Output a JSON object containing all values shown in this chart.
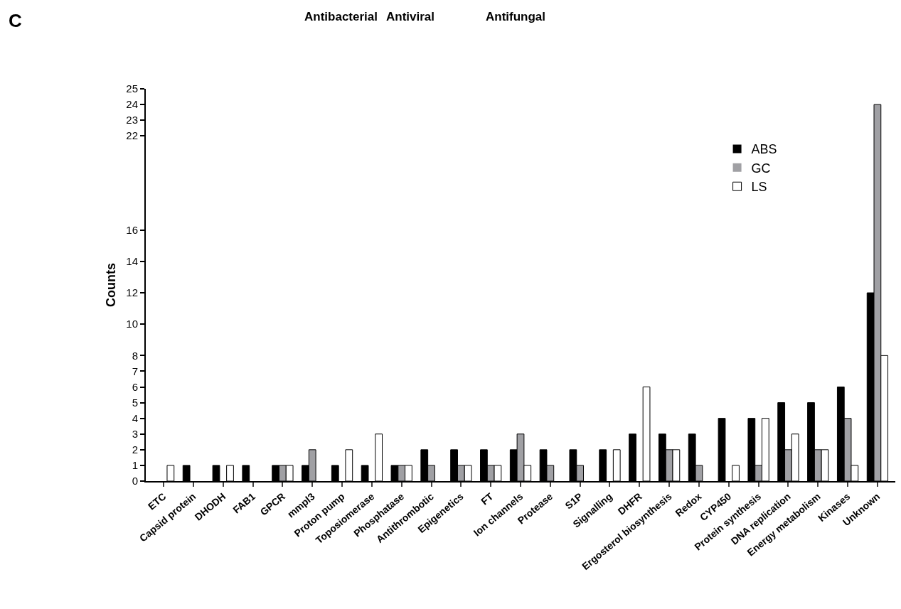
{
  "chart_data": {
    "type": "bar",
    "ylabel": "Counts",
    "categories": [
      "ETC",
      "Capsid protein",
      "DHODH",
      "FAB1",
      "GPCR",
      "mmpl3",
      "Proton pump",
      "Toposiomerase",
      "Phosphatase",
      "Antithrombotic",
      "Epigenetics",
      "FT",
      "Ion channels",
      "Protease",
      "S1P",
      "Signalling",
      "DHFR",
      "Ergosterol biosynthesis",
      "Redox",
      "CYP450",
      "Protein synthesis",
      "DNA replication",
      "Energy metabolism",
      "Kinases",
      "Unknown"
    ],
    "series": [
      {
        "name": "ABS",
        "color": "#000000",
        "values": [
          0,
          1,
          1,
          1,
          1,
          1,
          1,
          1,
          1,
          2,
          2,
          2,
          2,
          2,
          2,
          2,
          3,
          3,
          3,
          4,
          4,
          5,
          5,
          6,
          12
        ]
      },
      {
        "name": "GC",
        "color": "#a0a0a4",
        "values": [
          0,
          0,
          0,
          0,
          1,
          2,
          0,
          0,
          1,
          1,
          1,
          1,
          3,
          1,
          1,
          0,
          0,
          2,
          1,
          0,
          1,
          2,
          2,
          4,
          24
        ]
      },
      {
        "name": "LS",
        "color": "#ffffff",
        "values": [
          1,
          0,
          1,
          0,
          1,
          0,
          2,
          3,
          1,
          0,
          1,
          1,
          1,
          0,
          0,
          2,
          6,
          2,
          0,
          1,
          4,
          3,
          2,
          1,
          8
        ]
      }
    ],
    "ylim": [
      0,
      25
    ],
    "yticks": [
      0,
      1,
      2,
      3,
      4,
      5,
      6,
      7,
      8,
      10,
      12,
      14,
      16,
      22,
      23,
      24,
      25
    ],
    "legend": "top right",
    "annotations": [
      "C",
      "Antibacterial",
      "Antiviral",
      "Antifungal"
    ]
  }
}
